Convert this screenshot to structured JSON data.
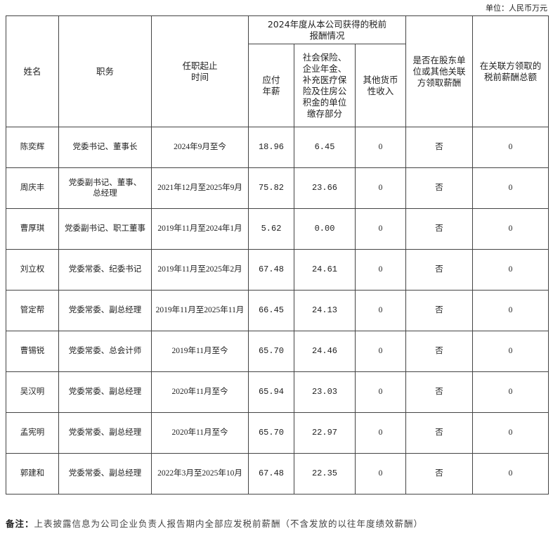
{
  "unit": "单位：人民币万元",
  "table": {
    "headers": {
      "name": "姓名",
      "position": "职务",
      "term": "任职起止\n时间",
      "group": "2024年度从本公司获得的税前\n报酬情况",
      "salary": "应付\n年薪",
      "social": "社会保险、\n企业年金、\n补充医疗保\n险及住房公\n积金的单位\n缴存部分",
      "other": "其他货币\n性收入",
      "related": "是否在股东单\n位或其他关联\n方领取薪酬",
      "related_total": "在关联方领取的\n税前薪酬总额"
    },
    "rows": [
      [
        "陈奕辉",
        "党委书记、董事长",
        "2024年9月至今",
        "18.96",
        "6.45",
        "0",
        "否",
        "0"
      ],
      [
        "周庆丰",
        "党委副书记、董事、\n总经理",
        "2021年12月至2025年9月",
        "75.82",
        "23.66",
        "0",
        "否",
        "0"
      ],
      [
        "曹厚琪",
        "党委副书记、职工董事",
        "2019年11月至2024年1月",
        "5.62",
        "0.00",
        "0",
        "否",
        "0"
      ],
      [
        "刘立权",
        "党委常委、纪委书记",
        "2019年11月至2025年2月",
        "67.48",
        "24.61",
        "0",
        "否",
        "0"
      ],
      [
        "管定帮",
        "党委常委、副总经理",
        "2019年11月至2025年11月",
        "66.45",
        "24.13",
        "0",
        "否",
        "0"
      ],
      [
        "曹锡锐",
        "党委常委、总会计师",
        "2019年11月至今",
        "65.70",
        "24.46",
        "0",
        "否",
        "0"
      ],
      [
        "吴汉明",
        "党委常委、副总经理",
        "2020年11月至今",
        "65.94",
        "23.03",
        "0",
        "否",
        "0"
      ],
      [
        "孟宪明",
        "党委常委、副总经理",
        "2020年11月至今",
        "65.70",
        "22.97",
        "0",
        "否",
        "0"
      ],
      [
        "郭建和",
        "党委常委、副总经理",
        "2022年3月至2025年10月",
        "67.48",
        "22.35",
        "0",
        "否",
        "0"
      ]
    ]
  },
  "note": {
    "label": "备注：",
    "text": "上表披露信息为公司企业负责人报告期内全部应发税前薪酬（不含发放的以往年度绩效薪酬）"
  }
}
